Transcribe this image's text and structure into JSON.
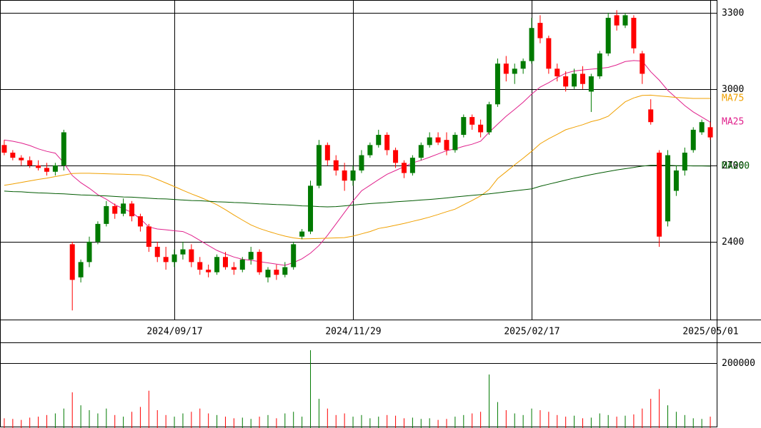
{
  "chart_data": [
    {
      "type": "candlestick",
      "categories": [
        null,
        null,
        null,
        null,
        null,
        null,
        null,
        null,
        null,
        null,
        null,
        null,
        null,
        null,
        null,
        null,
        null,
        null,
        null,
        null,
        "2024/09/17",
        null,
        null,
        null,
        null,
        null,
        null,
        null,
        null,
        null,
        null,
        null,
        null,
        null,
        null,
        null,
        null,
        null,
        null,
        null,
        null,
        "2024/11/29",
        null,
        null,
        null,
        null,
        null,
        null,
        null,
        null,
        null,
        null,
        null,
        null,
        null,
        null,
        null,
        null,
        null,
        null,
        null,
        null,
        "2025/02/17",
        null,
        null,
        null,
        null,
        null,
        null,
        null,
        null,
        null,
        null,
        null,
        null,
        null,
        null,
        null,
        null,
        null,
        null,
        null,
        null,
        "2025/05/01"
      ],
      "open": [
        2780,
        2750,
        2730,
        2720,
        2700,
        2690,
        2675,
        2700,
        2390,
        2260,
        2320,
        2400,
        2470,
        2540,
        2510,
        2550,
        2500,
        2460,
        2380,
        2340,
        2320,
        2350,
        2370,
        2320,
        2290,
        2280,
        2340,
        2300,
        2290,
        2330,
        2360,
        2260,
        2290,
        2270,
        2300,
        2420,
        2440,
        2620,
        2780,
        2720,
        2680,
        2640,
        2680,
        2740,
        2780,
        2820,
        2760,
        2710,
        2670,
        2730,
        2780,
        2810,
        2800,
        2760,
        2820,
        2890,
        2860,
        2830,
        2940,
        3100,
        3060,
        3080,
        3110,
        3260,
        3200,
        3080,
        3050,
        3010,
        3060,
        2990,
        3050,
        3140,
        3290,
        3250,
        3280,
        3140,
        2920,
        2750,
        2480,
        2600,
        2680,
        2760,
        2830,
        2850
      ],
      "high": [
        2800,
        2760,
        2740,
        2735,
        2720,
        2710,
        2710,
        2840,
        2400,
        2330,
        2420,
        2480,
        2560,
        2550,
        2570,
        2560,
        2510,
        2470,
        2400,
        2380,
        2370,
        2400,
        2390,
        2340,
        2310,
        2350,
        2360,
        2320,
        2340,
        2380,
        2370,
        2300,
        2310,
        2320,
        2400,
        2450,
        2640,
        2800,
        2790,
        2740,
        2710,
        2700,
        2760,
        2790,
        2840,
        2830,
        2770,
        2720,
        2740,
        2790,
        2830,
        2830,
        2830,
        2830,
        2900,
        2900,
        2880,
        2950,
        3120,
        3130,
        3100,
        3120,
        3280,
        3290,
        3210,
        3100,
        3070,
        3080,
        3090,
        3060,
        3150,
        3300,
        3310,
        3300,
        3290,
        3150,
        2960,
        2760,
        2760,
        2700,
        2770,
        2850,
        2880,
        2870
      ],
      "low": [
        2740,
        2720,
        2700,
        2690,
        2680,
        2660,
        2660,
        2680,
        2130,
        2240,
        2300,
        2390,
        2460,
        2490,
        2500,
        2480,
        2440,
        2360,
        2320,
        2290,
        2300,
        2330,
        2300,
        2270,
        2260,
        2270,
        2290,
        2270,
        2280,
        2310,
        2270,
        2240,
        2250,
        2260,
        2290,
        2410,
        2430,
        2610,
        2700,
        2660,
        2600,
        2620,
        2670,
        2730,
        2770,
        2740,
        2690,
        2650,
        2660,
        2720,
        2770,
        2780,
        2740,
        2750,
        2810,
        2840,
        2810,
        2820,
        2930,
        3030,
        3020,
        3060,
        3100,
        3180,
        3060,
        3030,
        2990,
        3000,
        3000,
        2910,
        3040,
        3130,
        3230,
        3240,
        3140,
        3020,
        2860,
        2380,
        2460,
        2580,
        2660,
        2750,
        2820,
        2800
      ],
      "close": [
        2750,
        2730,
        2720,
        2700,
        2690,
        2675,
        2700,
        2830,
        2250,
        2320,
        2400,
        2470,
        2540,
        2510,
        2550,
        2500,
        2460,
        2380,
        2340,
        2320,
        2350,
        2370,
        2320,
        2290,
        2280,
        2340,
        2300,
        2290,
        2330,
        2360,
        2280,
        2290,
        2270,
        2300,
        2390,
        2440,
        2620,
        2780,
        2720,
        2680,
        2640,
        2680,
        2740,
        2780,
        2820,
        2760,
        2710,
        2670,
        2730,
        2780,
        2810,
        2790,
        2760,
        2820,
        2890,
        2860,
        2830,
        2940,
        3100,
        3060,
        3080,
        3110,
        3240,
        3200,
        3080,
        3050,
        3010,
        3060,
        3020,
        3050,
        3140,
        3280,
        3250,
        3290,
        3160,
        3060,
        2870,
        2420,
        2740,
        2680,
        2750,
        2840,
        2870,
        2810
      ],
      "up_color": "#007a00",
      "down_color": "#ff0000",
      "series": [
        {
          "name": "MA25",
          "color": "#e0208c",
          "values": [
            2800,
            2795,
            2788,
            2778,
            2765,
            2755,
            2748,
            2710,
            2660,
            2632,
            2610,
            2585,
            2567,
            2545,
            2530,
            2515,
            2490,
            2458,
            2450,
            2447,
            2443,
            2440,
            2425,
            2405,
            2385,
            2366,
            2352,
            2340,
            2331,
            2327,
            2322,
            2317,
            2312,
            2307,
            2318,
            2333,
            2355,
            2385,
            2425,
            2470,
            2515,
            2560,
            2600,
            2622,
            2644,
            2665,
            2680,
            2695,
            2710,
            2720,
            2732,
            2745,
            2758,
            2765,
            2775,
            2783,
            2795,
            2830,
            2862,
            2893,
            2920,
            2948,
            2980,
            3008,
            3025,
            3045,
            3062,
            3071,
            3075,
            3078,
            3081,
            3085,
            3095,
            3108,
            3112,
            3110,
            3068,
            3035,
            2995,
            2965,
            2935,
            2910,
            2890,
            2870
          ]
        },
        {
          "name": "MA75",
          "color": "#f0a000",
          "values": [
            2622,
            2627,
            2633,
            2639,
            2645,
            2650,
            2656,
            2662,
            2668,
            2669,
            2669,
            2668,
            2667,
            2666,
            2665,
            2664,
            2663,
            2658,
            2645,
            2631,
            2617,
            2602,
            2588,
            2575,
            2561,
            2545,
            2526,
            2505,
            2485,
            2466,
            2452,
            2441,
            2431,
            2422,
            2415,
            2411,
            2412,
            2413,
            2414,
            2415,
            2416,
            2422,
            2431,
            2440,
            2452,
            2458,
            2465,
            2472,
            2480,
            2488,
            2497,
            2507,
            2518,
            2528,
            2545,
            2562,
            2580,
            2605,
            2648,
            2675,
            2702,
            2728,
            2755,
            2785,
            2805,
            2822,
            2840,
            2850,
            2860,
            2872,
            2880,
            2893,
            2922,
            2950,
            2965,
            2975,
            2976,
            2973,
            2970,
            2967,
            2965,
            2963,
            2963,
            2963
          ]
        },
        {
          "name": "MA200",
          "color": "#005a00",
          "values": [
            2599,
            2597,
            2596,
            2594,
            2592,
            2591,
            2589,
            2588,
            2586,
            2584,
            2583,
            2581,
            2580,
            2578,
            2576,
            2575,
            2573,
            2571,
            2569,
            2568,
            2566,
            2564,
            2562,
            2561,
            2559,
            2557,
            2556,
            2554,
            2553,
            2551,
            2549,
            2548,
            2546,
            2545,
            2543,
            2541,
            2540,
            2538,
            2537,
            2538,
            2541,
            2544,
            2547,
            2550,
            2552,
            2554,
            2557,
            2559,
            2561,
            2564,
            2566,
            2569,
            2572,
            2576,
            2579,
            2582,
            2585,
            2588,
            2592,
            2596,
            2600,
            2604,
            2608,
            2618,
            2626,
            2634,
            2642,
            2650,
            2657,
            2664,
            2670,
            2676,
            2682,
            2687,
            2692,
            2697,
            2700,
            2700,
            2700,
            2699,
            2699,
            2698,
            2698,
            2697
          ]
        }
      ],
      "ylim": [
        2094,
        3350
      ],
      "yticks": [
        2400,
        2700,
        3000,
        3300
      ],
      "grid": true
    },
    {
      "type": "bar",
      "values": [
        30000,
        28000,
        25000,
        32000,
        35000,
        40000,
        45000,
        60000,
        110000,
        70000,
        55000,
        45000,
        60000,
        40000,
        35000,
        50000,
        65000,
        115000,
        55000,
        40000,
        35000,
        45000,
        50000,
        60000,
        45000,
        40000,
        35000,
        30000,
        32000,
        28000,
        35000,
        40000,
        30000,
        45000,
        50000,
        35000,
        240000,
        90000,
        60000,
        40000,
        45000,
        35000,
        40000,
        30000,
        35000,
        40000,
        38000,
        30000,
        32000,
        28000,
        30000,
        25000,
        28000,
        35000,
        40000,
        45000,
        50000,
        165000,
        80000,
        55000,
        45000,
        40000,
        60000,
        55000,
        50000,
        40000,
        35000,
        38000,
        30000,
        32000,
        45000,
        40000,
        35000,
        38000,
        42000,
        60000,
        90000,
        120000,
        70000,
        50000,
        40000,
        30000,
        28000,
        35000
      ],
      "ylim": [
        0,
        264000
      ],
      "yticks": [
        200000
      ],
      "grid": true
    }
  ]
}
